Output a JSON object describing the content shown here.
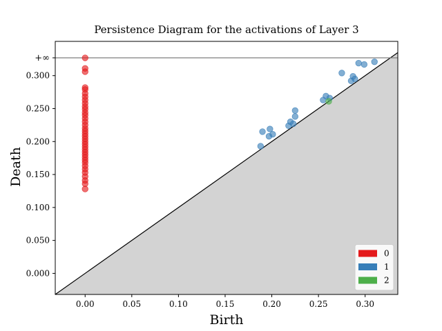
{
  "chart_data": {
    "type": "scatter",
    "title": "Persistence Diagram for the activations of Layer 3",
    "xlabel": "Birth",
    "ylabel": "Death",
    "xlim": [
      -0.032,
      0.335
    ],
    "ylim": [
      -0.032,
      0.352
    ],
    "x_ticks": [
      0.0,
      0.05,
      0.1,
      0.15,
      0.2,
      0.25,
      0.3
    ],
    "x_tick_labels": [
      "0.00",
      "0.05",
      "0.10",
      "0.15",
      "0.20",
      "0.25",
      "0.30"
    ],
    "y_ticks": [
      0.0,
      0.05,
      0.1,
      0.15,
      0.2,
      0.25,
      0.3
    ],
    "y_tick_labels": [
      "0.000",
      "0.050",
      "0.100",
      "0.150",
      "0.200",
      "0.250",
      "0.300"
    ],
    "infinity_label": "+∞",
    "infinity_value": 0.327,
    "diagonal": true,
    "grid": false,
    "legend_position": "bottom-right",
    "series": [
      {
        "name": "0",
        "color": "#e41a1c",
        "points": [
          [
            0.0,
            0.128
          ],
          [
            0.0,
            0.136
          ],
          [
            0.0,
            0.141
          ],
          [
            0.0,
            0.147
          ],
          [
            0.0,
            0.153
          ],
          [
            0.0,
            0.158
          ],
          [
            0.0,
            0.163
          ],
          [
            0.0,
            0.168
          ],
          [
            0.0,
            0.172
          ],
          [
            0.0,
            0.176
          ],
          [
            0.0,
            0.18
          ],
          [
            0.0,
            0.184
          ],
          [
            0.0,
            0.188
          ],
          [
            0.0,
            0.192
          ],
          [
            0.0,
            0.196
          ],
          [
            0.0,
            0.2
          ],
          [
            0.0,
            0.204
          ],
          [
            0.0,
            0.208
          ],
          [
            0.0,
            0.212
          ],
          [
            0.0,
            0.216
          ],
          [
            0.0,
            0.22
          ],
          [
            0.0,
            0.225
          ],
          [
            0.0,
            0.23
          ],
          [
            0.0,
            0.235
          ],
          [
            0.0,
            0.24
          ],
          [
            0.0,
            0.244
          ],
          [
            0.0,
            0.249
          ],
          [
            0.0,
            0.253
          ],
          [
            0.0,
            0.258
          ],
          [
            0.0,
            0.263
          ],
          [
            0.0,
            0.268
          ],
          [
            0.0,
            0.273
          ],
          [
            0.0,
            0.279
          ],
          [
            0.0,
            0.282
          ],
          [
            0.0,
            0.306
          ],
          [
            0.0,
            0.311
          ],
          [
            "inf",
            "inf"
          ]
        ]
      },
      {
        "name": "1",
        "color": "#377eb8",
        "points": [
          [
            0.188,
            0.193
          ],
          [
            0.19,
            0.215
          ],
          [
            0.197,
            0.208
          ],
          [
            0.198,
            0.219
          ],
          [
            0.201,
            0.211
          ],
          [
            0.218,
            0.224
          ],
          [
            0.22,
            0.23
          ],
          [
            0.223,
            0.227
          ],
          [
            0.225,
            0.238
          ],
          [
            0.225,
            0.247
          ],
          [
            0.255,
            0.263
          ],
          [
            0.258,
            0.269
          ],
          [
            0.262,
            0.266
          ],
          [
            0.275,
            0.304
          ],
          [
            0.285,
            0.292
          ],
          [
            0.287,
            0.299
          ],
          [
            0.289,
            0.295
          ],
          [
            0.293,
            0.319
          ],
          [
            0.299,
            0.317
          ],
          [
            0.31,
            0.321
          ]
        ]
      },
      {
        "name": "2",
        "color": "#4daf4a",
        "points": [
          [
            0.261,
            0.261
          ]
        ]
      }
    ]
  }
}
